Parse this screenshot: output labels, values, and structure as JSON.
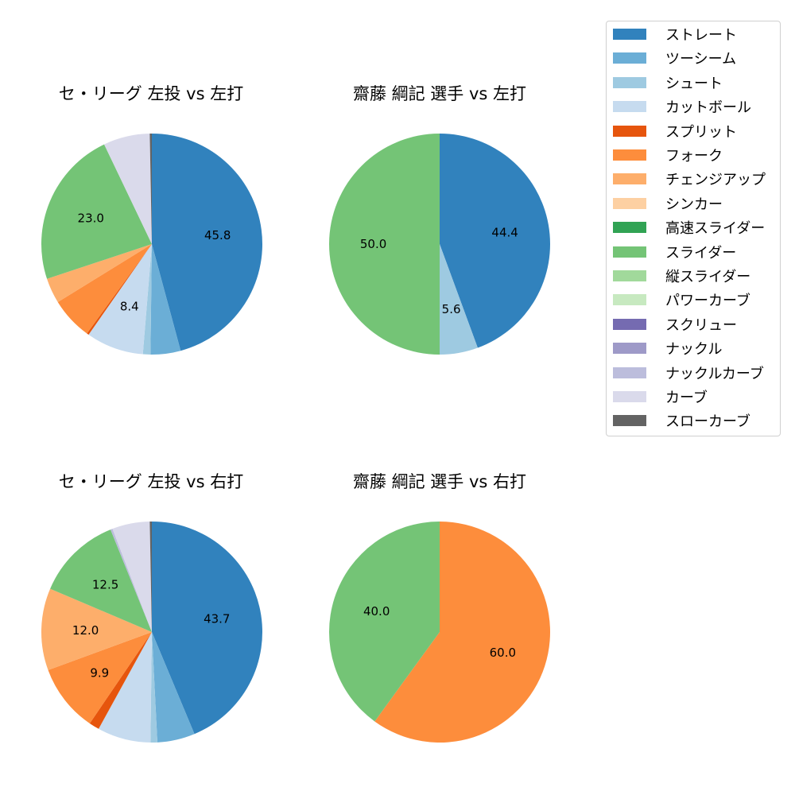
{
  "legend": {
    "items": [
      {
        "label": "ストレート",
        "color": "#3182bd"
      },
      {
        "label": "ツーシーム",
        "color": "#6baed6"
      },
      {
        "label": "シュート",
        "color": "#9ecae1"
      },
      {
        "label": "カットボール",
        "color": "#c6dbef"
      },
      {
        "label": "スプリット",
        "color": "#e6550d"
      },
      {
        "label": "フォーク",
        "color": "#fd8d3c"
      },
      {
        "label": "チェンジアップ",
        "color": "#fdae6b"
      },
      {
        "label": "シンカー",
        "color": "#fdd0a2"
      },
      {
        "label": "高速スライダー",
        "color": "#31a354"
      },
      {
        "label": "スライダー",
        "color": "#74c476"
      },
      {
        "label": "縦スライダー",
        "color": "#a1d99b"
      },
      {
        "label": "パワーカーブ",
        "color": "#c7e9c0"
      },
      {
        "label": "スクリュー",
        "color": "#756bb1"
      },
      {
        "label": "ナックル",
        "color": "#9e9ac8"
      },
      {
        "label": "ナックルカーブ",
        "color": "#bcbddc"
      },
      {
        "label": "カーブ",
        "color": "#dadaeb"
      },
      {
        "label": "スローカーブ",
        "color": "#636363"
      }
    ]
  },
  "chart_data": [
    {
      "type": "pie",
      "title": "セ・リーグ 左投 vs 左打",
      "categories": [
        "ストレート",
        "ツーシーム",
        "シュート",
        "カットボール",
        "スプリット",
        "フォーク",
        "チェンジアップ",
        "スライダー",
        "カーブ",
        "スローカーブ"
      ],
      "values": [
        45.8,
        4.4,
        1.1,
        8.4,
        0.3,
        6.2,
        3.7,
        23.0,
        6.8,
        0.3
      ],
      "labels_shown": [
        "45.8",
        "",
        "",
        "8.4",
        "",
        "",
        "",
        "23.0",
        "",
        ""
      ],
      "start_angle": 90,
      "direction": "clockwise"
    },
    {
      "type": "pie",
      "title": "齋藤 綱記 選手 vs 左打",
      "categories": [
        "ストレート",
        "シュート",
        "スライダー"
      ],
      "values": [
        44.4,
        5.6,
        50.0
      ],
      "labels_shown": [
        "44.4",
        "5.6",
        "50.0"
      ],
      "start_angle": 90,
      "direction": "clockwise"
    },
    {
      "type": "pie",
      "title": "セ・リーグ 左投 vs 右打",
      "categories": [
        "ストレート",
        "ツーシーム",
        "シュート",
        "カットボール",
        "スプリット",
        "フォーク",
        "チェンジアップ",
        "スライダー",
        "ナックルカーブ",
        "カーブ",
        "スローカーブ"
      ],
      "values": [
        43.7,
        5.5,
        1.0,
        7.8,
        1.5,
        9.9,
        12.0,
        12.5,
        0.3,
        5.5,
        0.3
      ],
      "labels_shown": [
        "43.7",
        "",
        "",
        "",
        "",
        "9.9",
        "12.0",
        "12.5",
        "",
        "",
        ""
      ],
      "start_angle": 90,
      "direction": "clockwise"
    },
    {
      "type": "pie",
      "title": "齋藤 綱記 選手 vs 右打",
      "categories": [
        "フォーク",
        "スライダー"
      ],
      "values": [
        60.0,
        40.0
      ],
      "labels_shown": [
        "60.0",
        "40.0"
      ],
      "start_angle": 90,
      "direction": "clockwise"
    }
  ]
}
